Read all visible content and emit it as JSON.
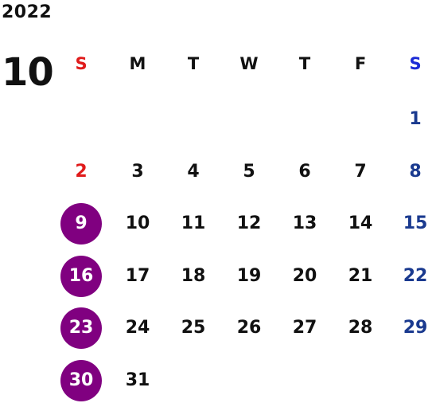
{
  "calendar": {
    "year": "2022",
    "month": "10",
    "weekdays": [
      "S",
      "M",
      "T",
      "W",
      "T",
      "F",
      "S"
    ],
    "first_weekday_index": 6,
    "days": [
      "1",
      "2",
      "3",
      "4",
      "5",
      "6",
      "7",
      "8",
      "9",
      "10",
      "11",
      "12",
      "13",
      "14",
      "15",
      "16",
      "17",
      "18",
      "19",
      "20",
      "21",
      "22",
      "23",
      "24",
      "25",
      "26",
      "27",
      "28",
      "29",
      "30",
      "31"
    ],
    "highlighted_days": [
      "9",
      "16",
      "23",
      "30"
    ],
    "colors": {
      "sunday": "#e01b1b",
      "saturday": "#1a3a8f",
      "saturday_header": "#1b2bd6",
      "default": "#111111",
      "highlight_fill": "#800080",
      "highlight_text": "#ffffff"
    }
  }
}
